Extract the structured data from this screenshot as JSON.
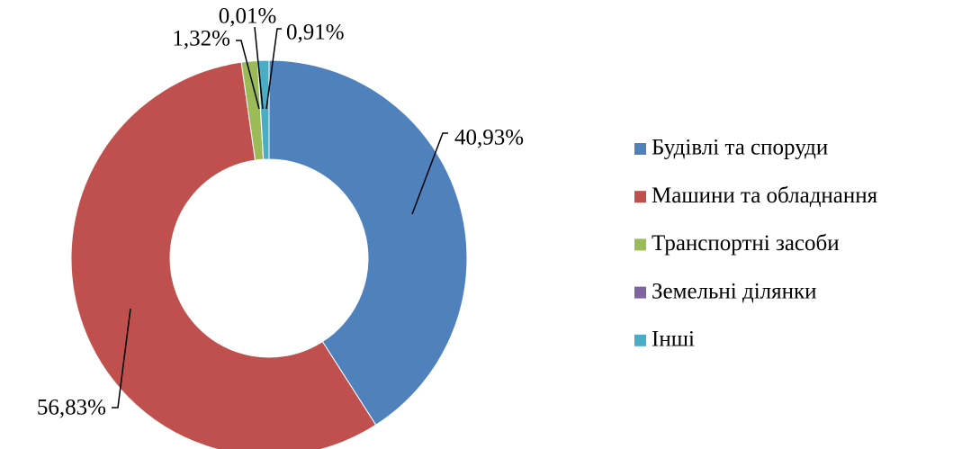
{
  "chart_data": {
    "type": "donut",
    "categories": [
      "Будівлі та споруди",
      "Машини та обладнання",
      "Транспортні засоби",
      "Земельні ділянки",
      "Інші"
    ],
    "series": [
      {
        "values": [
          40.93,
          56.83,
          1.32,
          0.01,
          0.91
        ],
        "value_labels": [
          "40,93%",
          "56,83%",
          "1,32%",
          "0,01%",
          "0,91%"
        ],
        "colors": [
          "#4f81bd",
          "#c0504d",
          "#9bbb59",
          "#8064a2",
          "#4bacc6"
        ]
      }
    ],
    "legend": "right"
  }
}
